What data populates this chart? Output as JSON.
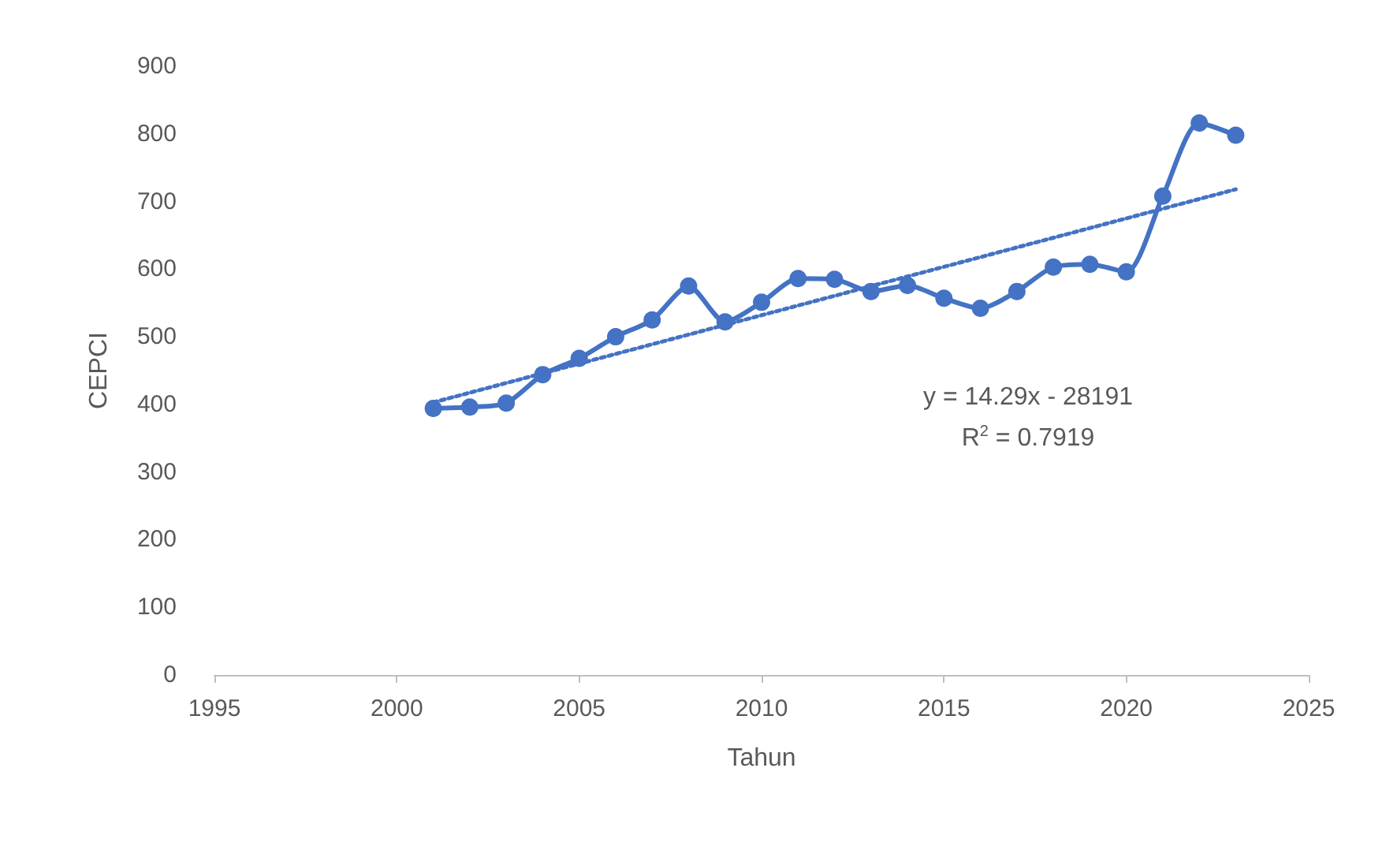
{
  "chart_data": {
    "type": "line",
    "xlabel": "Tahun",
    "ylabel": "CEPCI",
    "x": [
      2001,
      2002,
      2003,
      2004,
      2005,
      2006,
      2007,
      2008,
      2009,
      2010,
      2011,
      2012,
      2013,
      2014,
      2015,
      2016,
      2017,
      2018,
      2019,
      2020,
      2021,
      2022,
      2023
    ],
    "series": [
      {
        "color": "#4472c4",
        "marker": "circle",
        "line_style": "solid",
        "values": [
          394,
          396,
          402,
          444,
          468,
          500,
          525,
          575,
          522,
          551,
          586,
          585,
          567,
          576,
          557,
          542,
          567,
          603,
          607,
          596,
          708,
          816,
          798
        ]
      },
      {
        "type": "line",
        "color": "#4472c4",
        "marker": "none",
        "line_style": "dotted",
        "x": [
          2001,
          2023
        ],
        "values": [
          403,
          718
        ]
      }
    ],
    "xlim": [
      1995,
      2025
    ],
    "xticks": [
      1995,
      2000,
      2005,
      2010,
      2015,
      2020,
      2025
    ],
    "ylim": [
      0,
      900
    ],
    "yticks": [
      0,
      100,
      200,
      300,
      400,
      500,
      600,
      700,
      800,
      900
    ],
    "grid": false,
    "annotations": [
      "y = 14.29x - 28191",
      "R$^{2}$ = 0.7919"
    ]
  }
}
